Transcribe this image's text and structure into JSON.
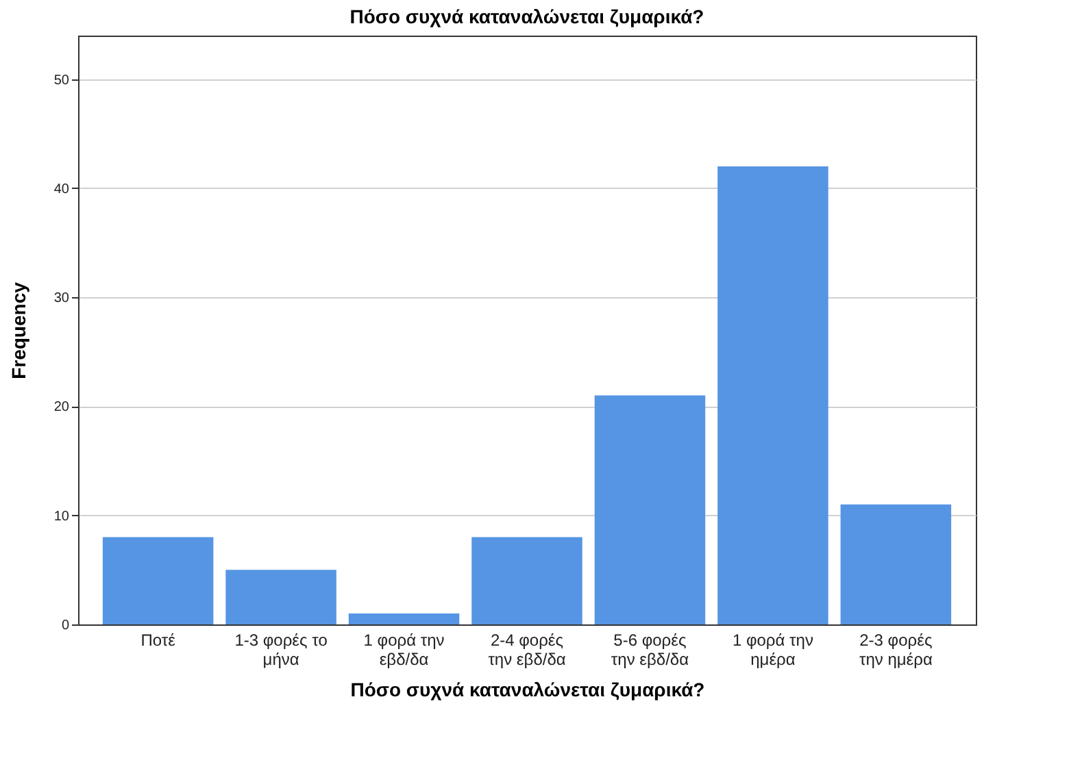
{
  "chart_data": {
    "type": "bar",
    "title": "Πόσο συχνά καταναλώνεται ζυμαρικά?",
    "xlabel": "Πόσο συχνά καταναλώνεται ζυμαρικά?",
    "ylabel": "Frequency",
    "categories": [
      "Ποτέ",
      "1-3 φορές το μήνα",
      "1 φορά την εβδ/δα",
      "2-4 φορές την εβδ/δα",
      "5-6 φορές την εβδ/δα",
      "1 φορά την ημέρα",
      "2-3 φορές την ημέρα"
    ],
    "values": [
      8,
      5,
      1,
      8,
      21,
      42,
      11
    ],
    "color": "#5595e3",
    "ylim": [
      0,
      54
    ],
    "yticks": [
      0,
      10,
      20,
      30,
      40,
      50
    ],
    "grid": "y"
  }
}
